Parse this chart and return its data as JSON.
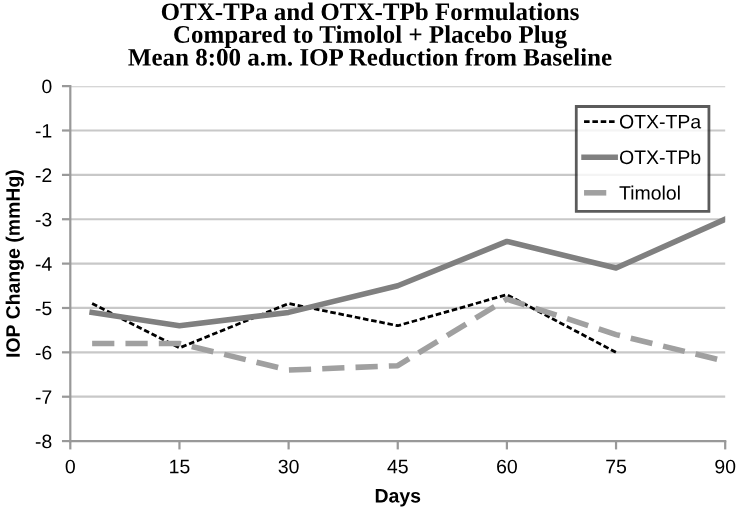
{
  "chart_data": {
    "type": "line",
    "title": "OTX-TPa and OTX-TPb Formulations\nCompared to Timolol + Placebo Plug\nMean 8:00 a.m. IOP Reduction from Baseline",
    "xlabel": "Days",
    "ylabel": "IOP Change (mmHg)",
    "xlim": [
      0,
      90
    ],
    "xticks": [
      0,
      15,
      30,
      45,
      60,
      75,
      90
    ],
    "ylim": [
      -8,
      0
    ],
    "yticks": [
      -8,
      -7,
      -6,
      -5,
      -4,
      -3,
      -2,
      -1,
      0
    ],
    "grid": "y",
    "legend": "top right",
    "marker": "none",
    "series": [
      {
        "name": "OTX-TPa",
        "color": "#000000",
        "line_style": "dotted",
        "x": [
          3,
          15,
          30,
          45,
          60,
          75
        ],
        "values": [
          -4.9,
          -5.9,
          -4.9,
          -5.4,
          -4.7,
          -6.0
        ]
      },
      {
        "name": "OTX-TPb",
        "color": "#808080",
        "line_style": "solid",
        "x": [
          3,
          15,
          30,
          45,
          60,
          75,
          90
        ],
        "values": [
          -5.1,
          -5.4,
          -5.1,
          -4.5,
          -3.5,
          -4.1,
          -3.0
        ]
      },
      {
        "name": "Timolol",
        "color": "#a0a0a0",
        "line_style": "dashed",
        "x": [
          3,
          15,
          30,
          45,
          60,
          75,
          90
        ],
        "values": [
          -5.8,
          -5.8,
          -6.4,
          -6.3,
          -4.8,
          -5.6,
          -6.2
        ]
      }
    ]
  }
}
